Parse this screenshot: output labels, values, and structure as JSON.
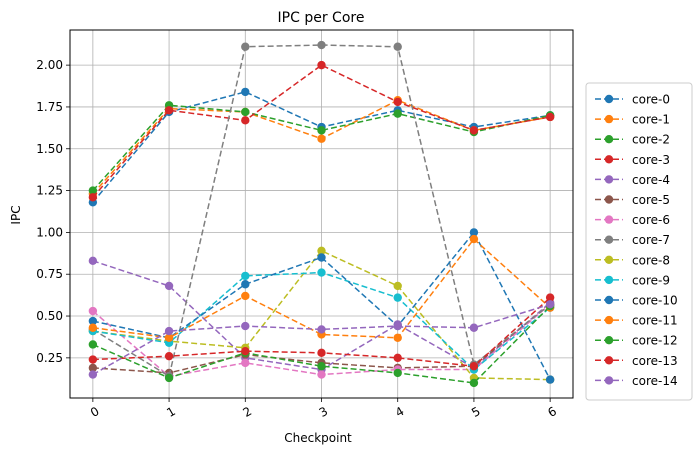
{
  "chart_data": {
    "type": "line",
    "title": "IPC per Core",
    "xlabel": "Checkpoint",
    "ylabel": "IPC",
    "x": [
      0,
      1,
      2,
      3,
      4,
      5,
      6
    ],
    "x_tick_labels": [
      "0",
      "1",
      "2",
      "3",
      "4",
      "5",
      "6"
    ],
    "y_ticks": [
      0.25,
      0.5,
      0.75,
      1.0,
      1.25,
      1.5,
      1.75,
      2.0
    ],
    "y_tick_labels": [
      "0.25",
      "0.50",
      "0.75",
      "1.00",
      "1.25",
      "1.50",
      "1.75",
      "2.00"
    ],
    "xlim": [
      -0.3,
      6.3
    ],
    "ylim": [
      0.01,
      2.21
    ],
    "grid": true,
    "legend_position": "right",
    "line_style": "dashed",
    "marker": "circle",
    "series": [
      {
        "name": "core-0",
        "color": "#1f77b4",
        "values": [
          1.18,
          1.72,
          1.84,
          1.63,
          1.73,
          1.63,
          1.7
        ]
      },
      {
        "name": "core-1",
        "color": "#ff7f0e",
        "values": [
          1.23,
          1.74,
          1.72,
          1.56,
          1.79,
          1.61,
          1.69
        ]
      },
      {
        "name": "core-2",
        "color": "#2ca02c",
        "values": [
          1.25,
          1.76,
          1.72,
          1.61,
          1.71,
          1.6,
          1.7
        ]
      },
      {
        "name": "core-3",
        "color": "#d62728",
        "values": [
          1.21,
          1.73,
          1.67,
          2.0,
          1.78,
          1.61,
          1.69
        ]
      },
      {
        "name": "core-4",
        "color": "#9467bd",
        "values": [
          0.83,
          0.68,
          0.25,
          0.18,
          0.45,
          0.19,
          0.58
        ]
      },
      {
        "name": "core-5",
        "color": "#8c564b",
        "values": [
          0.19,
          0.16,
          0.27,
          0.22,
          0.19,
          0.2,
          0.57
        ]
      },
      {
        "name": "core-6",
        "color": "#e377c2",
        "values": [
          0.53,
          0.14,
          0.22,
          0.15,
          0.18,
          0.18,
          0.57
        ]
      },
      {
        "name": "core-7",
        "color": "#7f7f7f",
        "values": [
          0.42,
          0.14,
          2.11,
          2.12,
          2.11,
          0.21,
          0.57
        ]
      },
      {
        "name": "core-8",
        "color": "#bcbd22",
        "values": [
          0.41,
          0.35,
          0.31,
          0.89,
          0.68,
          0.13,
          0.12
        ]
      },
      {
        "name": "core-9",
        "color": "#17becf",
        "values": [
          0.41,
          0.34,
          0.74,
          0.76,
          0.61,
          0.18,
          0.55
        ]
      },
      {
        "name": "core-10",
        "color": "#1f77b4",
        "values": [
          0.47,
          0.37,
          0.69,
          0.85,
          0.44,
          1.0,
          0.12
        ]
      },
      {
        "name": "core-11",
        "color": "#ff7f0e",
        "values": [
          0.43,
          0.37,
          0.62,
          0.39,
          0.37,
          0.96,
          0.55
        ]
      },
      {
        "name": "core-12",
        "color": "#2ca02c",
        "values": [
          0.33,
          0.13,
          0.28,
          0.2,
          0.16,
          0.1,
          0.56
        ]
      },
      {
        "name": "core-13",
        "color": "#d62728",
        "values": [
          0.24,
          0.26,
          0.29,
          0.28,
          0.25,
          0.2,
          0.61
        ]
      },
      {
        "name": "core-14",
        "color": "#9467bd",
        "values": [
          0.15,
          0.41,
          0.44,
          0.42,
          0.44,
          0.43,
          0.57
        ]
      }
    ]
  }
}
